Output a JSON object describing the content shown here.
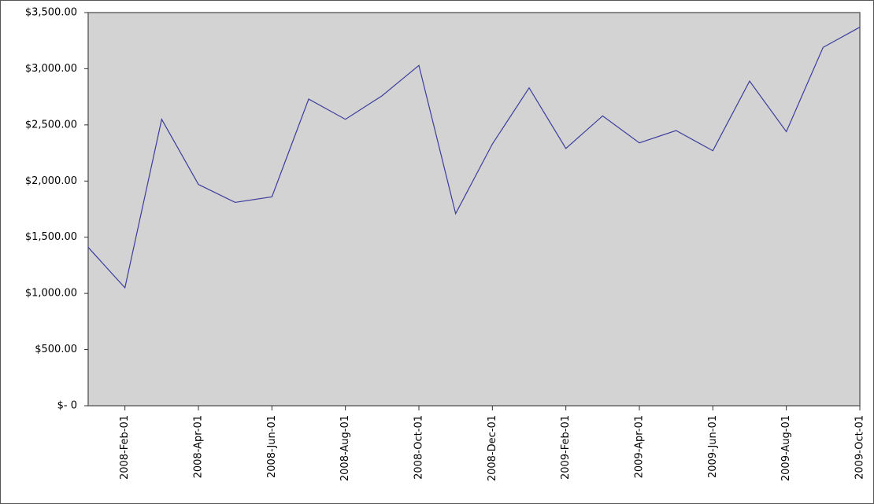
{
  "chart_data": {
    "type": "line",
    "categories": [
      null,
      "2008-Feb-01",
      null,
      "2008-Apr-01",
      null,
      "2008-Jun-01",
      null,
      "2008-Aug-01",
      null,
      "2008-Oct-01",
      null,
      "2008-Dec-01",
      null,
      "2009-Feb-01",
      null,
      "2009-Apr-01",
      null,
      "2009-Jun-01",
      null,
      "2009-Aug-01",
      null,
      "2009-Oct-01"
    ],
    "series": [
      {
        "color": "#3c3c9c",
        "values": [
          1410,
          1050,
          2550,
          1970,
          1810,
          1860,
          2730,
          2550,
          2760,
          3030,
          1710,
          2330,
          2830,
          2290,
          2580,
          2340,
          2450,
          2270,
          2890,
          2440,
          3190,
          3370
        ]
      }
    ],
    "ylim": [
      0,
      3500
    ],
    "yticks": [
      {
        "value": 0,
        "label": "$- 0"
      },
      {
        "value": 500,
        "label": "$500.00"
      },
      {
        "value": 1000,
        "label": "$1,000.00"
      },
      {
        "value": 1500,
        "label": "$1,500.00"
      },
      {
        "value": 2000,
        "label": "$2,000.00"
      },
      {
        "value": 2500,
        "label": "$2,500.00"
      },
      {
        "value": 3000,
        "label": "$3,000.00"
      },
      {
        "value": 3500,
        "label": "$3,500.00"
      }
    ],
    "plot_background": "#d3d3d3"
  }
}
